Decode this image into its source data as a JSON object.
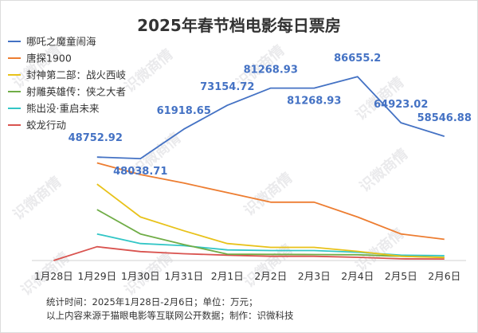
{
  "watermark": "识微商情",
  "notes": {
    "line1": "统计时间：2025年1月28日-2月6日；单位：万元；",
    "line2": "以上内容来源于猫眼电影等互联网公开数据；制作：识微科技"
  },
  "chart_data": {
    "type": "line",
    "title": "2025年春节档电影每日票房",
    "unit": "万元",
    "categories": [
      "1月28日",
      "1月29日",
      "1月30日",
      "1月31日",
      "2月1日",
      "2月2日",
      "2月3日",
      "2月4日",
      "2月5日",
      "2月6日"
    ],
    "ylim": [
      0,
      92000
    ],
    "grid": false,
    "legend_position": "top-left",
    "series": [
      {
        "name": "哪吒之魔童闹海",
        "color": "#4472C4",
        "values": [
          null,
          48752.92,
          48038.71,
          61918.65,
          73154.72,
          81268.93,
          81268.93,
          86655.2,
          64923.02,
          58546.88
        ],
        "labels": [
          null,
          "48752.92",
          "48038.71",
          "61918.65",
          "73154.72",
          "81268.93",
          "81268.93",
          "86655.2",
          "64923.02",
          "58546.88"
        ]
      },
      {
        "name": "唐探1900",
        "color": "#ED7D31",
        "values": [
          null,
          46000,
          40500,
          36500,
          32000,
          27500,
          27500,
          20500,
          12500,
          10000
        ]
      },
      {
        "name": "封神第二部：战火西岐",
        "color": "#E8C21A",
        "values": [
          null,
          36000,
          20500,
          14000,
          8000,
          6200,
          6200,
          4300,
          2000,
          1400
        ]
      },
      {
        "name": "射雕英雄传：侠之大者",
        "color": "#70AD47",
        "values": [
          null,
          24000,
          12500,
          7500,
          3000,
          2900,
          2800,
          2700,
          2000,
          1500
        ]
      },
      {
        "name": "熊出没·重启未来",
        "color": "#33C6C6",
        "values": [
          null,
          12500,
          8000,
          7000,
          5000,
          4700,
          4700,
          3900,
          2500,
          2300
        ]
      },
      {
        "name": "蛟龙行动",
        "color": "#D9534F",
        "values": [
          0,
          6500,
          4200,
          3200,
          2500,
          2000,
          2000,
          1500,
          800,
          700
        ]
      }
    ]
  }
}
